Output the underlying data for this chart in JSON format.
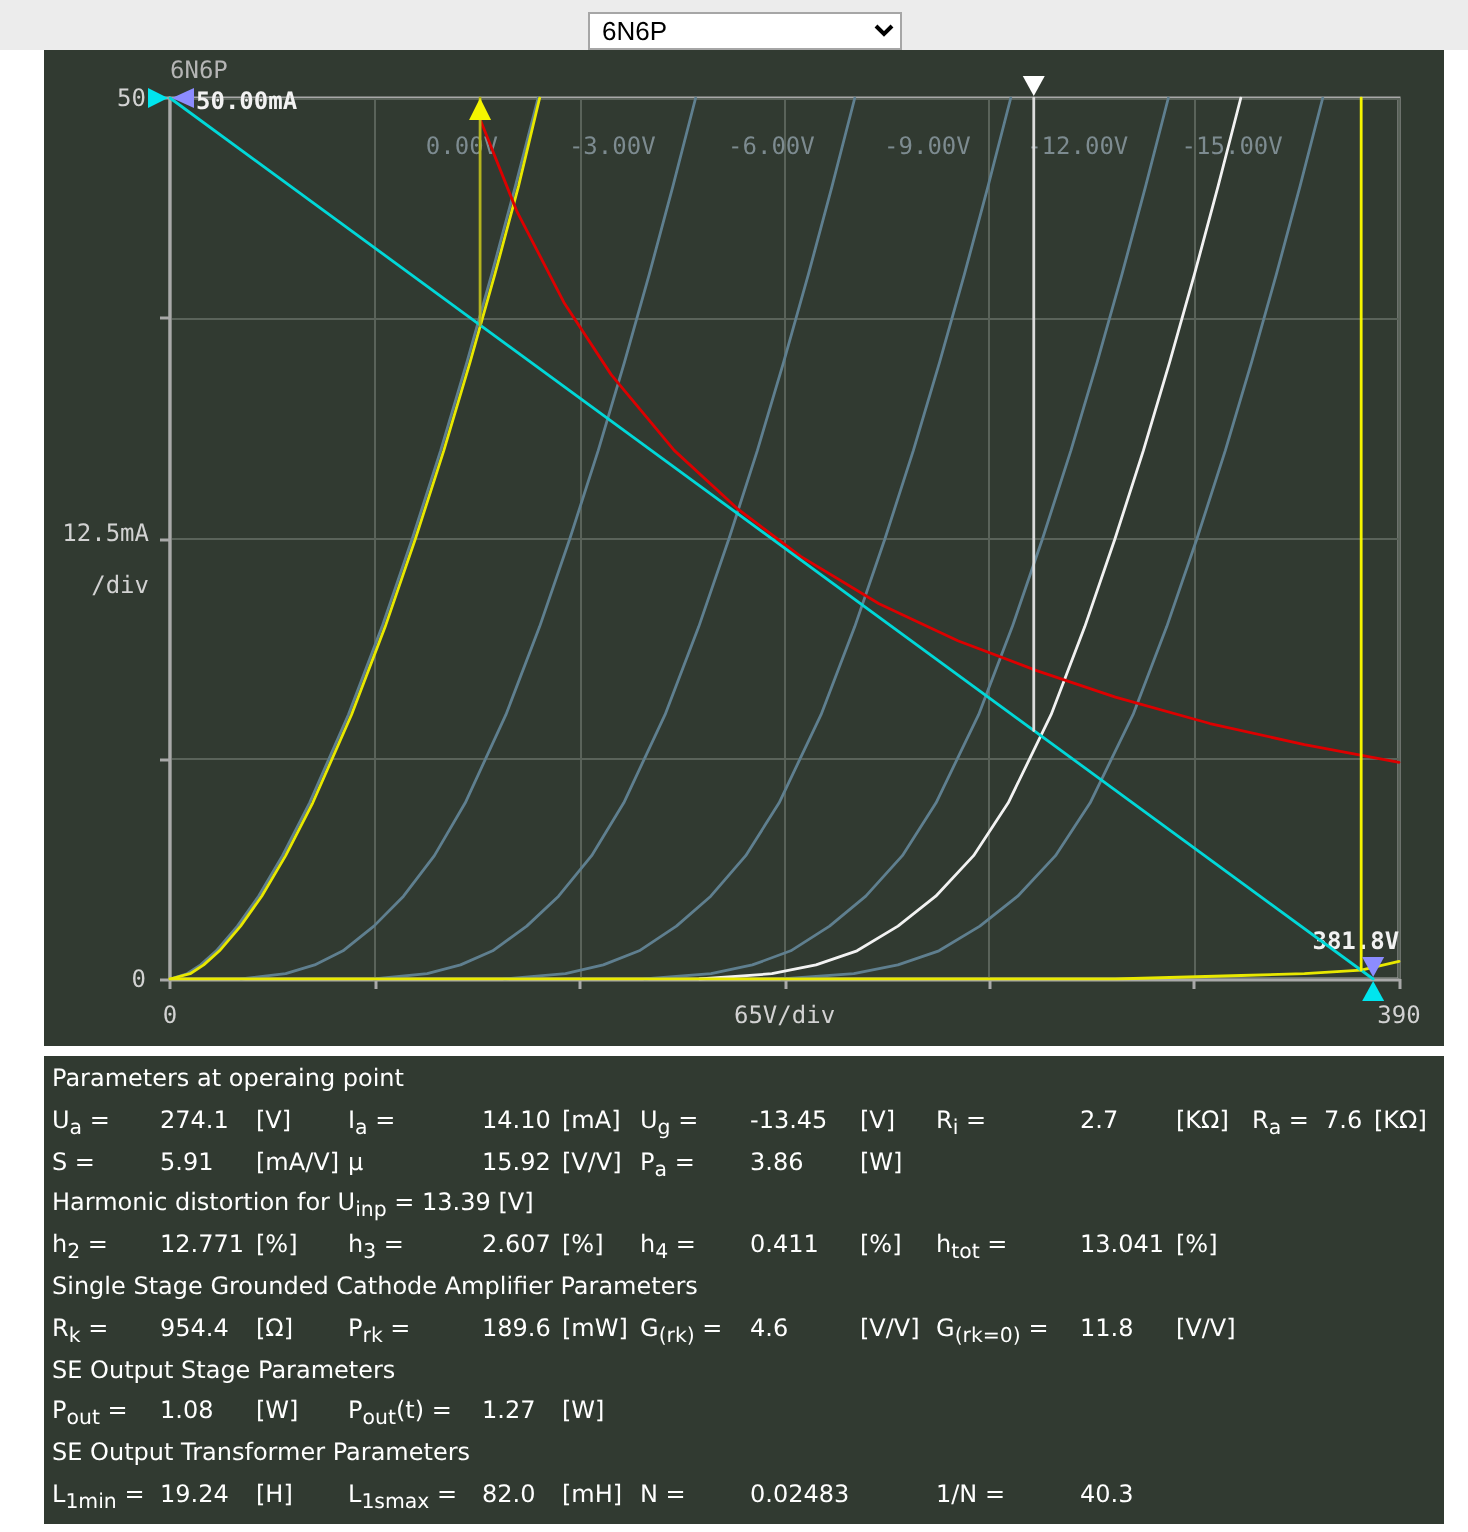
{
  "chart_data": [
    {
      "type": "line",
      "title": "6N6P",
      "xlabel": "65V/div",
      "ylabel": "12.5mA /div",
      "xlim": [
        0,
        390
      ],
      "ylim": [
        0,
        50
      ],
      "xticks": [
        0,
        {
          "value": 65,
          "label": null
        },
        {
          "value": 130,
          "label": null
        },
        {
          "value": 195,
          "label": null
        },
        {
          "value": 260,
          "label": null
        },
        {
          "value": 325,
          "label": null
        },
        390
      ],
      "yticks": [
        0,
        {
          "value": 12.5,
          "label": null
        },
        {
          "value": 25,
          "label": null
        },
        {
          "value": 37.5,
          "label": null
        },
        50
      ],
      "grid": true,
      "marker": "none",
      "annotations": [
        "6N6P",
        {
          "text": "50.00mA",
          "x": 0,
          "y": 50
        },
        {
          "text": "381.8V",
          "x": 381.8,
          "y": 0
        }
      ],
      "series": [
        {
          "name": "0.00V",
          "color": "#5f7f8f",
          "x": [
            0,
            5.4,
            9.7,
            14.7,
            21.4,
            28.1,
            35.7,
            44.3,
            56.6,
            67.3,
            76.9,
            85.9,
            94.2,
            102.1,
            109.6,
            116.8
          ],
          "values": [
            0,
            0.3,
            0.8,
            1.6,
            3,
            4.7,
            7,
            10,
            15,
            20,
            25,
            30,
            35,
            40,
            45,
            50
          ]
        },
        {
          "name": "-3.00V",
          "color": "#5f7f8f",
          "x": [
            22.5,
            36.7,
            45.9,
            54.9,
            64.7,
            74.1,
            83.9,
            93.7,
            106.6,
            117.3,
            126.9,
            135.9,
            144.2,
            152.1,
            159.6,
            166.8
          ],
          "values": [
            0,
            0.3,
            0.8,
            1.6,
            3,
            4.7,
            7,
            10,
            15,
            20,
            25,
            30,
            35,
            40,
            45,
            50
          ]
        },
        {
          "name": "-6.00V",
          "color": "#5f7f8f",
          "x": [
            64.7,
            81.6,
            92.2,
            102.4,
            113.2,
            123.3,
            133.8,
            144,
            157.1,
            167.8,
            177.4,
            186.4,
            194.7,
            202.6,
            210.1,
            217.3
          ],
          "values": [
            0,
            0.3,
            0.8,
            1.6,
            3,
            4.7,
            7,
            10,
            15,
            20,
            25,
            30,
            35,
            40,
            45,
            50
          ]
        },
        {
          "name": "-9.00V",
          "color": "#5f7f8f",
          "x": [
            106,
            125.5,
            137.5,
            148.9,
            160.7,
            171.6,
            182.7,
            193.3,
            206.6,
            217.3,
            226.9,
            235.9,
            244.2,
            252.1,
            259.6,
            266.8
          ],
          "values": [
            0,
            0.3,
            0.8,
            1.6,
            3,
            4.7,
            7,
            10,
            15,
            20,
            25,
            30,
            35,
            40,
            45,
            50
          ]
        },
        {
          "name": "-12.00V",
          "color": "#5f7f8f",
          "x": [
            150.5,
            171.7,
            184.8,
            197,
            209.3,
            220.8,
            232.4,
            243.1,
            256.6,
            267.3,
            276.9,
            285.9,
            294.2,
            302.1,
            309.6,
            316.8
          ],
          "values": [
            0,
            0.3,
            0.8,
            1.6,
            3,
            4.7,
            7,
            10,
            15,
            20,
            25,
            30,
            35,
            40,
            45,
            50
          ]
        },
        {
          "name": "-15.00V",
          "color": "#5f7f8f",
          "x": [
            194,
            217,
            231,
            244,
            257,
            269,
            281,
            292,
            305.6,
            316.3,
            325.9,
            334.9,
            343.2,
            351.1,
            358.6,
            365.8
          ],
          "values": [
            0,
            0.3,
            0.8,
            1.6,
            3,
            4.7,
            7,
            10,
            15,
            20,
            25,
            30,
            35,
            40,
            45,
            50
          ]
        },
        {
          "color": "#f2f2f2",
          "x": [
            168,
            191,
            205,
            218,
            231,
            243,
            255,
            266,
            279.6,
            290.3,
            299.9,
            308.9,
            317.2,
            325.1,
            332.6,
            339.8
          ],
          "values": [
            0,
            0.3,
            0.8,
            1.6,
            3,
            4.7,
            7,
            10,
            15,
            20,
            25,
            30,
            35,
            40,
            45,
            50
          ]
        },
        {
          "color": "#e8e800",
          "x": [
            0,
            6.4,
            10.7,
            15.7,
            22.4,
            29.1,
            36.7,
            45.3,
            57.6,
            68.3,
            77.9,
            86.9,
            95.2,
            103.1,
            110.6,
            117.3
          ],
          "values": [
            0,
            0.3,
            0.8,
            1.6,
            3,
            4.7,
            7,
            10,
            15,
            20,
            25,
            30,
            35,
            40,
            45,
            50
          ]
        },
        {
          "color": "#e8e800",
          "x": [
            0,
            300,
            340,
            360,
            378,
            390
          ],
          "values": [
            0,
            0,
            0.2,
            0.3,
            0.5,
            1
          ]
        },
        {
          "color": "#dd0000",
          "x": [
            98.4,
            110,
            125,
            140,
            160,
            180,
            200,
            225,
            250,
            275,
            300,
            330,
            360,
            390
          ],
          "values": [
            48.8,
            43.6,
            38.4,
            34.3,
            30,
            26.7,
            24,
            21.3,
            19.2,
            17.5,
            16,
            14.5,
            13.3,
            12.3
          ]
        },
        {
          "color": "#00d8d8",
          "x": [
            0,
            381.8
          ],
          "values": [
            50,
            0
          ]
        },
        {
          "color": "#b4b41e",
          "x": [
            98.4,
            98.4
          ],
          "values": [
            37.1,
            50
          ]
        },
        {
          "color": "#dcdcdc",
          "x": [
            274.1,
            274.1
          ],
          "values": [
            14.1,
            50
          ]
        },
        {
          "color": "#f5f500",
          "x": [
            378,
            378
          ],
          "values": [
            0.5,
            50
          ]
        }
      ]
    },
    {
      "type": "other",
      "title": "Parameters at operaing point",
      "annotations": [
        "U$_{a}$ =\t274.1\t[V]",
        "I$_{a}$ =\t14.10\t[mA]",
        "U$_{g}$ =\t-13.45\t[V]",
        "R$_{i}$ =\t2.7\t[KΩ]",
        "R$_{a}$ =\t7.6\t[KΩ]",
        "S =\t5.91\t[mA/V]",
        "µ\t15.92\t[V/V]",
        "P$_{a}$ =\t3.86\t[W]"
      ]
    },
    {
      "type": "other",
      "title": "Harmonic distortion for U$_{inp}$ = 13.39 [V]",
      "annotations": [
        "h$_{2}$ =\t12.771\t[%]",
        "h$_{3}$ =\t2.607\t[%]",
        "h$_{4}$ =\t0.411\t[%]",
        "h$_{tot}$ =\t13.041\t[%]"
      ]
    },
    {
      "type": "other",
      "title": "Single Stage Grounded Cathode Amplifier Parameters",
      "annotations": [
        "R$_{k}$ =\t954.4\t[Ω]",
        "P$_{rk}$ =\t189.6\t[mW]",
        "G$_{(rk)}$ =\t4.6\t[V/V]",
        "G$_{(rk=0)}$ =\t11.8\t[V/V]"
      ]
    },
    {
      "type": "other",
      "title": "SE Output Stage Parameters",
      "annotations": [
        "P$_{out}$ =\t1.08\t[W]",
        "P$_{out}$(t) =\t1.27\t[W]"
      ]
    },
    {
      "type": "other",
      "title": "SE Output Transformer Parameters",
      "annotations": [
        "L$_{1min}$ =\t19.24\t[H]",
        "L$_{1smax}$ =\t82.0\t[mH]",
        "N =\t0.02483",
        "1/N =\t40.3"
      ]
    }
  ]
}
